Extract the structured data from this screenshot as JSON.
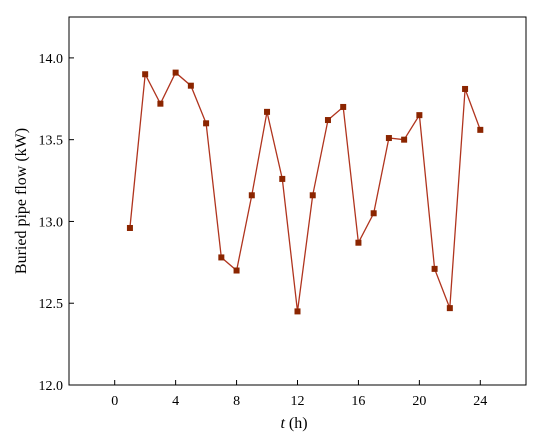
{
  "chart_data": {
    "type": "line",
    "xlabel_var": "t",
    "xlabel_unit": " (h)",
    "ylabel": "Buried pipe flow (kW)",
    "xlim": [
      -3,
      27
    ],
    "ylim": [
      12.0,
      14.25
    ],
    "xticks": [
      "0",
      "4",
      "8",
      "12",
      "16",
      "20",
      "24"
    ],
    "xtick_values": [
      0,
      4,
      8,
      12,
      16,
      20,
      24
    ],
    "yticks": [
      "12.0",
      "12.5",
      "13.0",
      "13.5",
      "14.0"
    ],
    "ytick_values": [
      12.0,
      12.5,
      13.0,
      13.5,
      14.0
    ],
    "grid": false,
    "series": [
      {
        "color": "#8B2500",
        "marker": "square",
        "x": [
          1,
          2,
          3,
          4,
          5,
          6,
          7,
          8,
          9,
          10,
          11,
          12,
          13,
          14,
          15,
          16,
          17,
          18,
          19,
          20,
          21,
          22,
          23,
          24
        ],
        "y": [
          12.96,
          13.9,
          13.72,
          13.91,
          13.83,
          13.6,
          12.78,
          12.7,
          13.16,
          13.67,
          13.26,
          12.45,
          13.16,
          13.62,
          13.7,
          12.87,
          13.05,
          13.51,
          13.5,
          13.65,
          12.71,
          12.47,
          13.81,
          13.56
        ]
      }
    ]
  }
}
